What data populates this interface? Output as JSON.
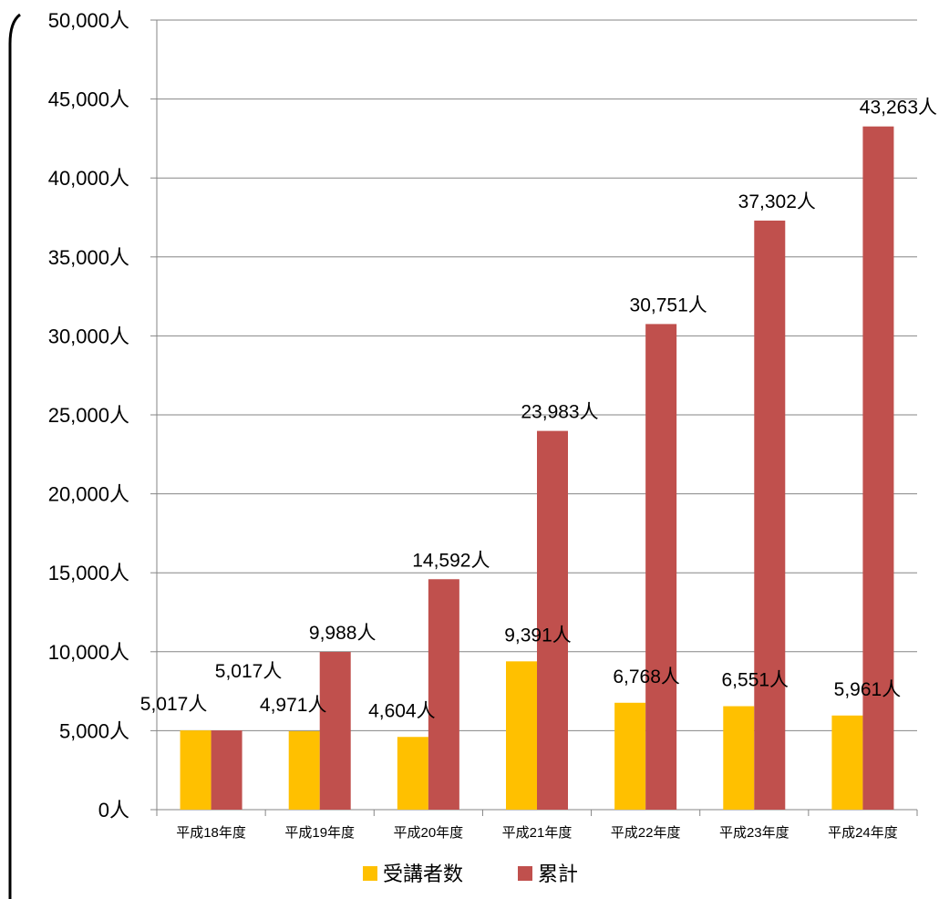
{
  "chart_data": {
    "type": "bar",
    "categories": [
      "平成18年度",
      "平成19年度",
      "平成20年度",
      "平成21年度",
      "平成22年度",
      "平成23年度",
      "平成24年度"
    ],
    "series": [
      {
        "name": "受講者数",
        "color": "#FFC000",
        "values": [
          5017,
          4971,
          4604,
          9391,
          6768,
          6551,
          5961
        ],
        "labels": [
          "5,017人",
          "4,971人",
          "4,604人",
          "9,391人",
          "6,768人",
          "6,551人",
          "5,961人"
        ]
      },
      {
        "name": "累計",
        "color": "#C0504D",
        "values": [
          5017,
          9988,
          14592,
          23983,
          30751,
          37302,
          43263
        ],
        "labels": [
          "5,017人",
          "9,988人",
          "14,592人",
          "23,983人",
          "30,751人",
          "37,302人",
          "43,263人"
        ]
      }
    ],
    "ylim": [
      0,
      50000
    ],
    "yticks": [
      0,
      5000,
      10000,
      15000,
      20000,
      25000,
      30000,
      35000,
      40000,
      45000,
      50000
    ],
    "ytick_labels": [
      "0人",
      "5,000人",
      "10,000人",
      "15,000人",
      "20,000人",
      "25,000人",
      "30,000人",
      "35,000人",
      "40,000人",
      "45,000人",
      "50,000人"
    ],
    "grid": true,
    "legend_position": "bottom",
    "gridline_color": "#868686"
  }
}
